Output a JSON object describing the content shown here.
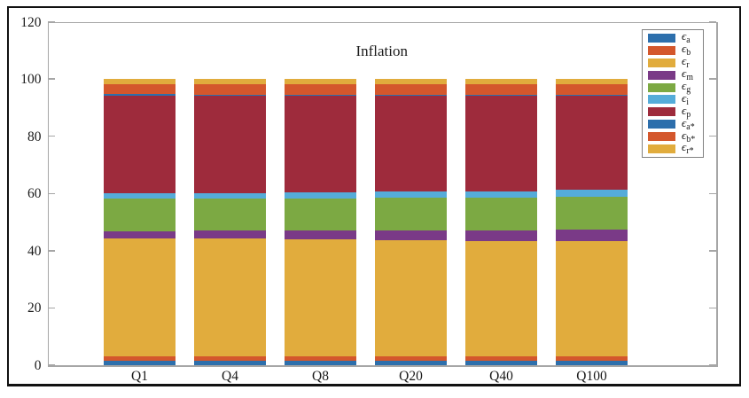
{
  "chart_data": {
    "type": "bar",
    "variant": "stacked",
    "title": "Inflation",
    "categories": [
      "Q1",
      "Q4",
      "Q8",
      "Q20",
      "Q40",
      "Q100"
    ],
    "series": [
      {
        "id": "eps_a",
        "symbol": "ϵ",
        "sub": "a",
        "color": "#2d6fac",
        "values": [
          1.4,
          1.4,
          1.4,
          1.4,
          1.4,
          1.4
        ]
      },
      {
        "id": "eps_b",
        "symbol": "ϵ",
        "sub": "b",
        "color": "#d4572c",
        "values": [
          1.6,
          1.6,
          1.6,
          1.6,
          1.6,
          1.6
        ]
      },
      {
        "id": "eps_r",
        "symbol": "ϵ",
        "sub": "r",
        "color": "#e1ac3d",
        "values": [
          41.3,
          41.2,
          41.0,
          40.8,
          40.5,
          40.2
        ]
      },
      {
        "id": "eps_m",
        "symbol": "ϵ",
        "sub": "m",
        "color": "#7a3a87",
        "values": [
          2.6,
          2.8,
          3.0,
          3.3,
          3.7,
          4.1
        ]
      },
      {
        "id": "eps_g",
        "symbol": "ϵ",
        "sub": "g",
        "color": "#7ca943",
        "values": [
          11.2,
          11.2,
          11.3,
          11.3,
          11.3,
          11.4
        ]
      },
      {
        "id": "eps_i",
        "symbol": "ϵ",
        "sub": "i",
        "color": "#55acd9",
        "values": [
          2.0,
          2.0,
          2.1,
          2.2,
          2.3,
          2.5
        ]
      },
      {
        "id": "eps_p",
        "symbol": "ϵ",
        "sub": "p",
        "color": "#9e2b3c",
        "values": [
          34.1,
          33.8,
          33.6,
          33.4,
          33.2,
          32.8
        ]
      },
      {
        "id": "eps_a_star",
        "symbol": "ϵ",
        "sub": "a*",
        "color": "#2d6fac",
        "values": [
          0.5,
          0.5,
          0.5,
          0.5,
          0.5,
          0.5
        ]
      },
      {
        "id": "eps_b_star",
        "symbol": "ϵ",
        "sub": "b*",
        "color": "#d4572c",
        "values": [
          3.6,
          3.7,
          3.7,
          3.7,
          3.7,
          3.7
        ]
      },
      {
        "id": "eps_r_star",
        "symbol": "ϵ",
        "sub": "r*",
        "color": "#e1ac3d",
        "values": [
          1.7,
          1.8,
          1.8,
          1.8,
          1.8,
          1.8
        ]
      }
    ],
    "ylim": [
      0,
      120
    ],
    "yticks": [
      "0",
      "20",
      "40",
      "60",
      "80",
      "100",
      "120"
    ],
    "grid": false,
    "legend_position": "northeast",
    "axis_color": "#a6a6a6",
    "text_color": "#1a1a1a"
  }
}
